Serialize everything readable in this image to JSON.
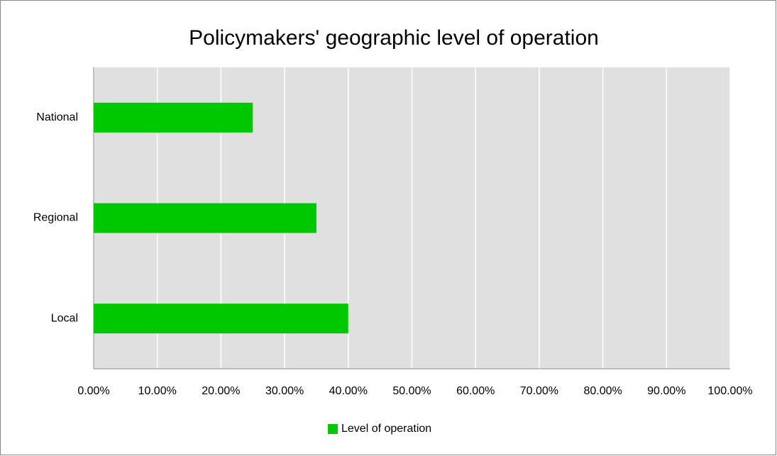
{
  "chart_data": {
    "type": "bar",
    "orientation": "horizontal",
    "title": "Policymakers' geographic level of operation",
    "categories": [
      "National",
      "Regional",
      "Local"
    ],
    "series": [
      {
        "name": "Level of operation",
        "color": "#00c800",
        "values": [
          25,
          35,
          40
        ]
      }
    ],
    "xlim": [
      0,
      100
    ],
    "xticks": [
      {
        "value": 0,
        "label": "0.00%"
      },
      {
        "value": 10,
        "label": "10.00%"
      },
      {
        "value": 20,
        "label": "20.00%"
      },
      {
        "value": 30,
        "label": "30.00%"
      },
      {
        "value": 40,
        "label": "40.00%"
      },
      {
        "value": 50,
        "label": "50.00%"
      },
      {
        "value": 60,
        "label": "60.00%"
      },
      {
        "value": 70,
        "label": "70.00%"
      },
      {
        "value": 80,
        "label": "80.00%"
      },
      {
        "value": 90,
        "label": "90.00%"
      },
      {
        "value": 100,
        "label": "100.00%"
      }
    ],
    "grid": true,
    "legend": "bottom"
  }
}
